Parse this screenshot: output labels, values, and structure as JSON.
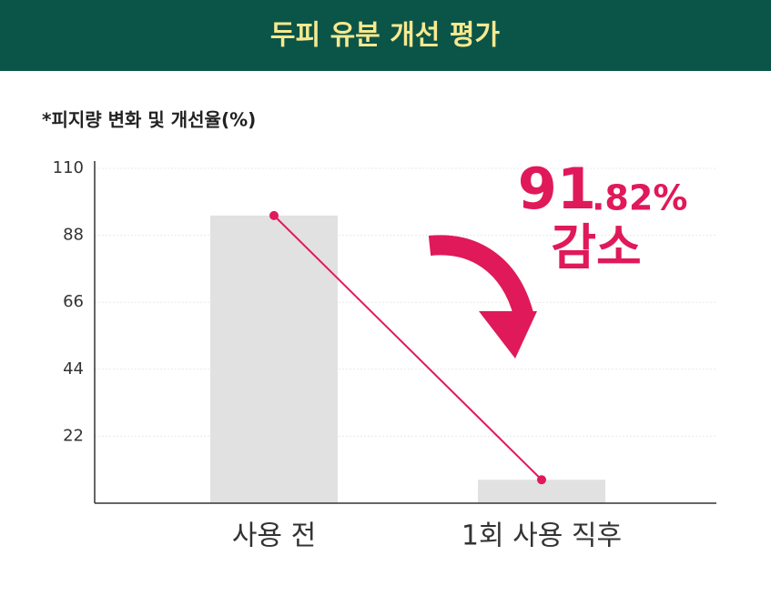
{
  "header": {
    "title": "두피 유분 개선 평가"
  },
  "chart_data": {
    "type": "bar",
    "subtitle": "*피지량 변화 및 개선율(%)",
    "categories": [
      "사용 전",
      "1회 사용 직후"
    ],
    "values": [
      94.5,
      7.7
    ],
    "color": "#e1e1e1",
    "line_color": "#e0195a",
    "ylim": [
      0,
      110
    ],
    "yticks": [
      22,
      44,
      66,
      88,
      110
    ],
    "grid": true,
    "annotation": {
      "number": "91",
      "decimal": ".82%",
      "text": "감소"
    }
  }
}
